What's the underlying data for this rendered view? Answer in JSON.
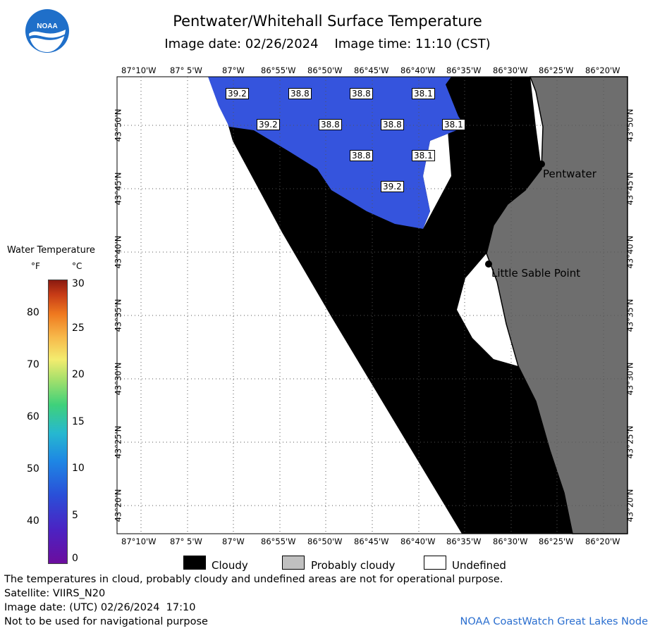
{
  "header": {
    "title": "Pentwater/Whitehall Surface Temperature",
    "subtitle": "Image date: 02/26/2024    Image time: 11:10 (CST)"
  },
  "logo": {
    "text": "NOAA",
    "icon": "noaa-logo-icon"
  },
  "colors": {
    "land": "#6e6e6e",
    "cloud": "#000000",
    "water": "#3554dd",
    "undefined": "#ffffff",
    "probably_cloudy": "#c0c0c0",
    "credit": "#2a6ecf"
  },
  "axes": {
    "longitude_labels": [
      "87°10'W",
      "87° 5'W",
      "87°W",
      "86°55'W",
      "86°50'W",
      "86°45'W",
      "86°40'W",
      "86°35'W",
      "86°30'W",
      "86°25'W",
      "86°20'W"
    ],
    "latitude_labels": [
      "43°50'N",
      "43°45'N",
      "43°40'N",
      "43°35'N",
      "43°30'N",
      "43°25'N",
      "43°20'N"
    ]
  },
  "temperature_labels": [
    "39.2",
    "38.8",
    "38.8",
    "38.1",
    "39.2",
    "38.8",
    "38.8",
    "38.1",
    "38.8",
    "38.1",
    "39.2"
  ],
  "places": [
    "Pentwater",
    "Little Sable Point"
  ],
  "colorbar": {
    "title": "Water Temperature",
    "unit_f": "°F",
    "unit_c": "°C",
    "f_ticks": [
      "80",
      "70",
      "60",
      "50",
      "40"
    ],
    "c_ticks": [
      "30",
      "25",
      "20",
      "15",
      "10",
      "5",
      "0"
    ]
  },
  "legend": {
    "cloudy": "Cloudy",
    "probably_cloudy": "Probably cloudy",
    "undefined": "Undefined"
  },
  "footer": {
    "line1": "The temperatures in cloud, probably cloudy and undefined areas are not for operational purpose.",
    "line2": "Satellite: VIIRS_N20",
    "line3": "Image date: (UTC) 02/26/2024  17:10",
    "line4": "Not to be used for navigational purpose",
    "credit": "NOAA CoastWatch Great Lakes Node"
  }
}
